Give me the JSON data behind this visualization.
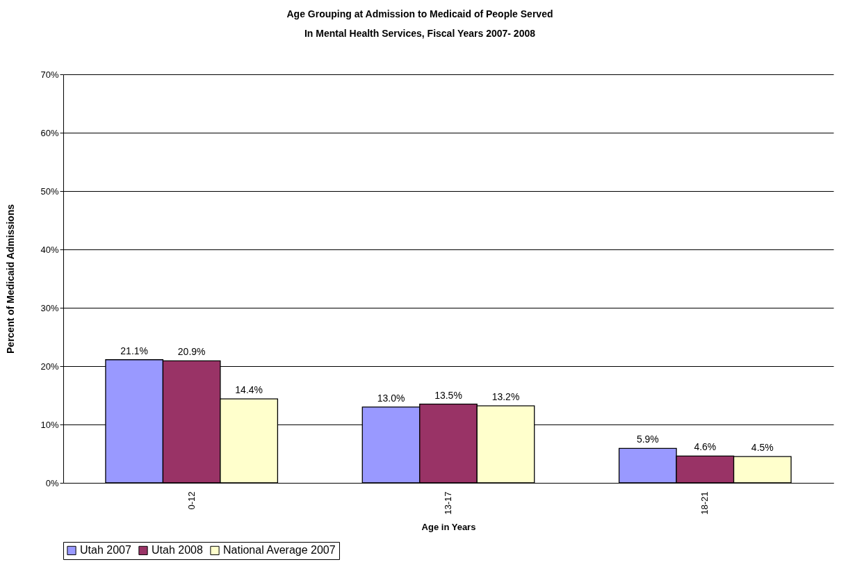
{
  "chart_data": {
    "type": "bar",
    "title": "Age Grouping at Admission to Medicaid of People Served",
    "subtitle": "In Mental Health Services, Fiscal Years 2007- 2008",
    "xlabel": "Age in Years",
    "ylabel": "Percent of Medicaid Admissions",
    "categories": [
      "0-12",
      "13-17",
      "18-21"
    ],
    "series": [
      {
        "name": "Utah 2007",
        "color": "#9999ff",
        "values": [
          21.1,
          13.0,
          5.9
        ],
        "value_labels": [
          "21.1%",
          "13.0%",
          "5.9%"
        ]
      },
      {
        "name": "Utah 2008",
        "color": "#993366",
        "values": [
          20.9,
          13.5,
          4.6
        ],
        "value_labels": [
          "20.9%",
          "13.5%",
          "4.6%"
        ]
      },
      {
        "name": "National Average 2007",
        "color": "#ffffcc",
        "values": [
          14.4,
          13.2,
          4.5
        ],
        "value_labels": [
          "14.4%",
          "13.2%",
          "4.5%"
        ]
      }
    ],
    "ylim": [
      0,
      70
    ],
    "yticks": [
      {
        "value": 0,
        "label": "0%"
      },
      {
        "value": 10,
        "label": "10%"
      },
      {
        "value": 20,
        "label": "20%"
      },
      {
        "value": 30,
        "label": "30%"
      },
      {
        "value": 40,
        "label": "40%"
      },
      {
        "value": 50,
        "label": "50%"
      },
      {
        "value": 60,
        "label": "60%"
      },
      {
        "value": 70,
        "label": "70%"
      }
    ],
    "grid": "y",
    "legend": "bottom"
  }
}
